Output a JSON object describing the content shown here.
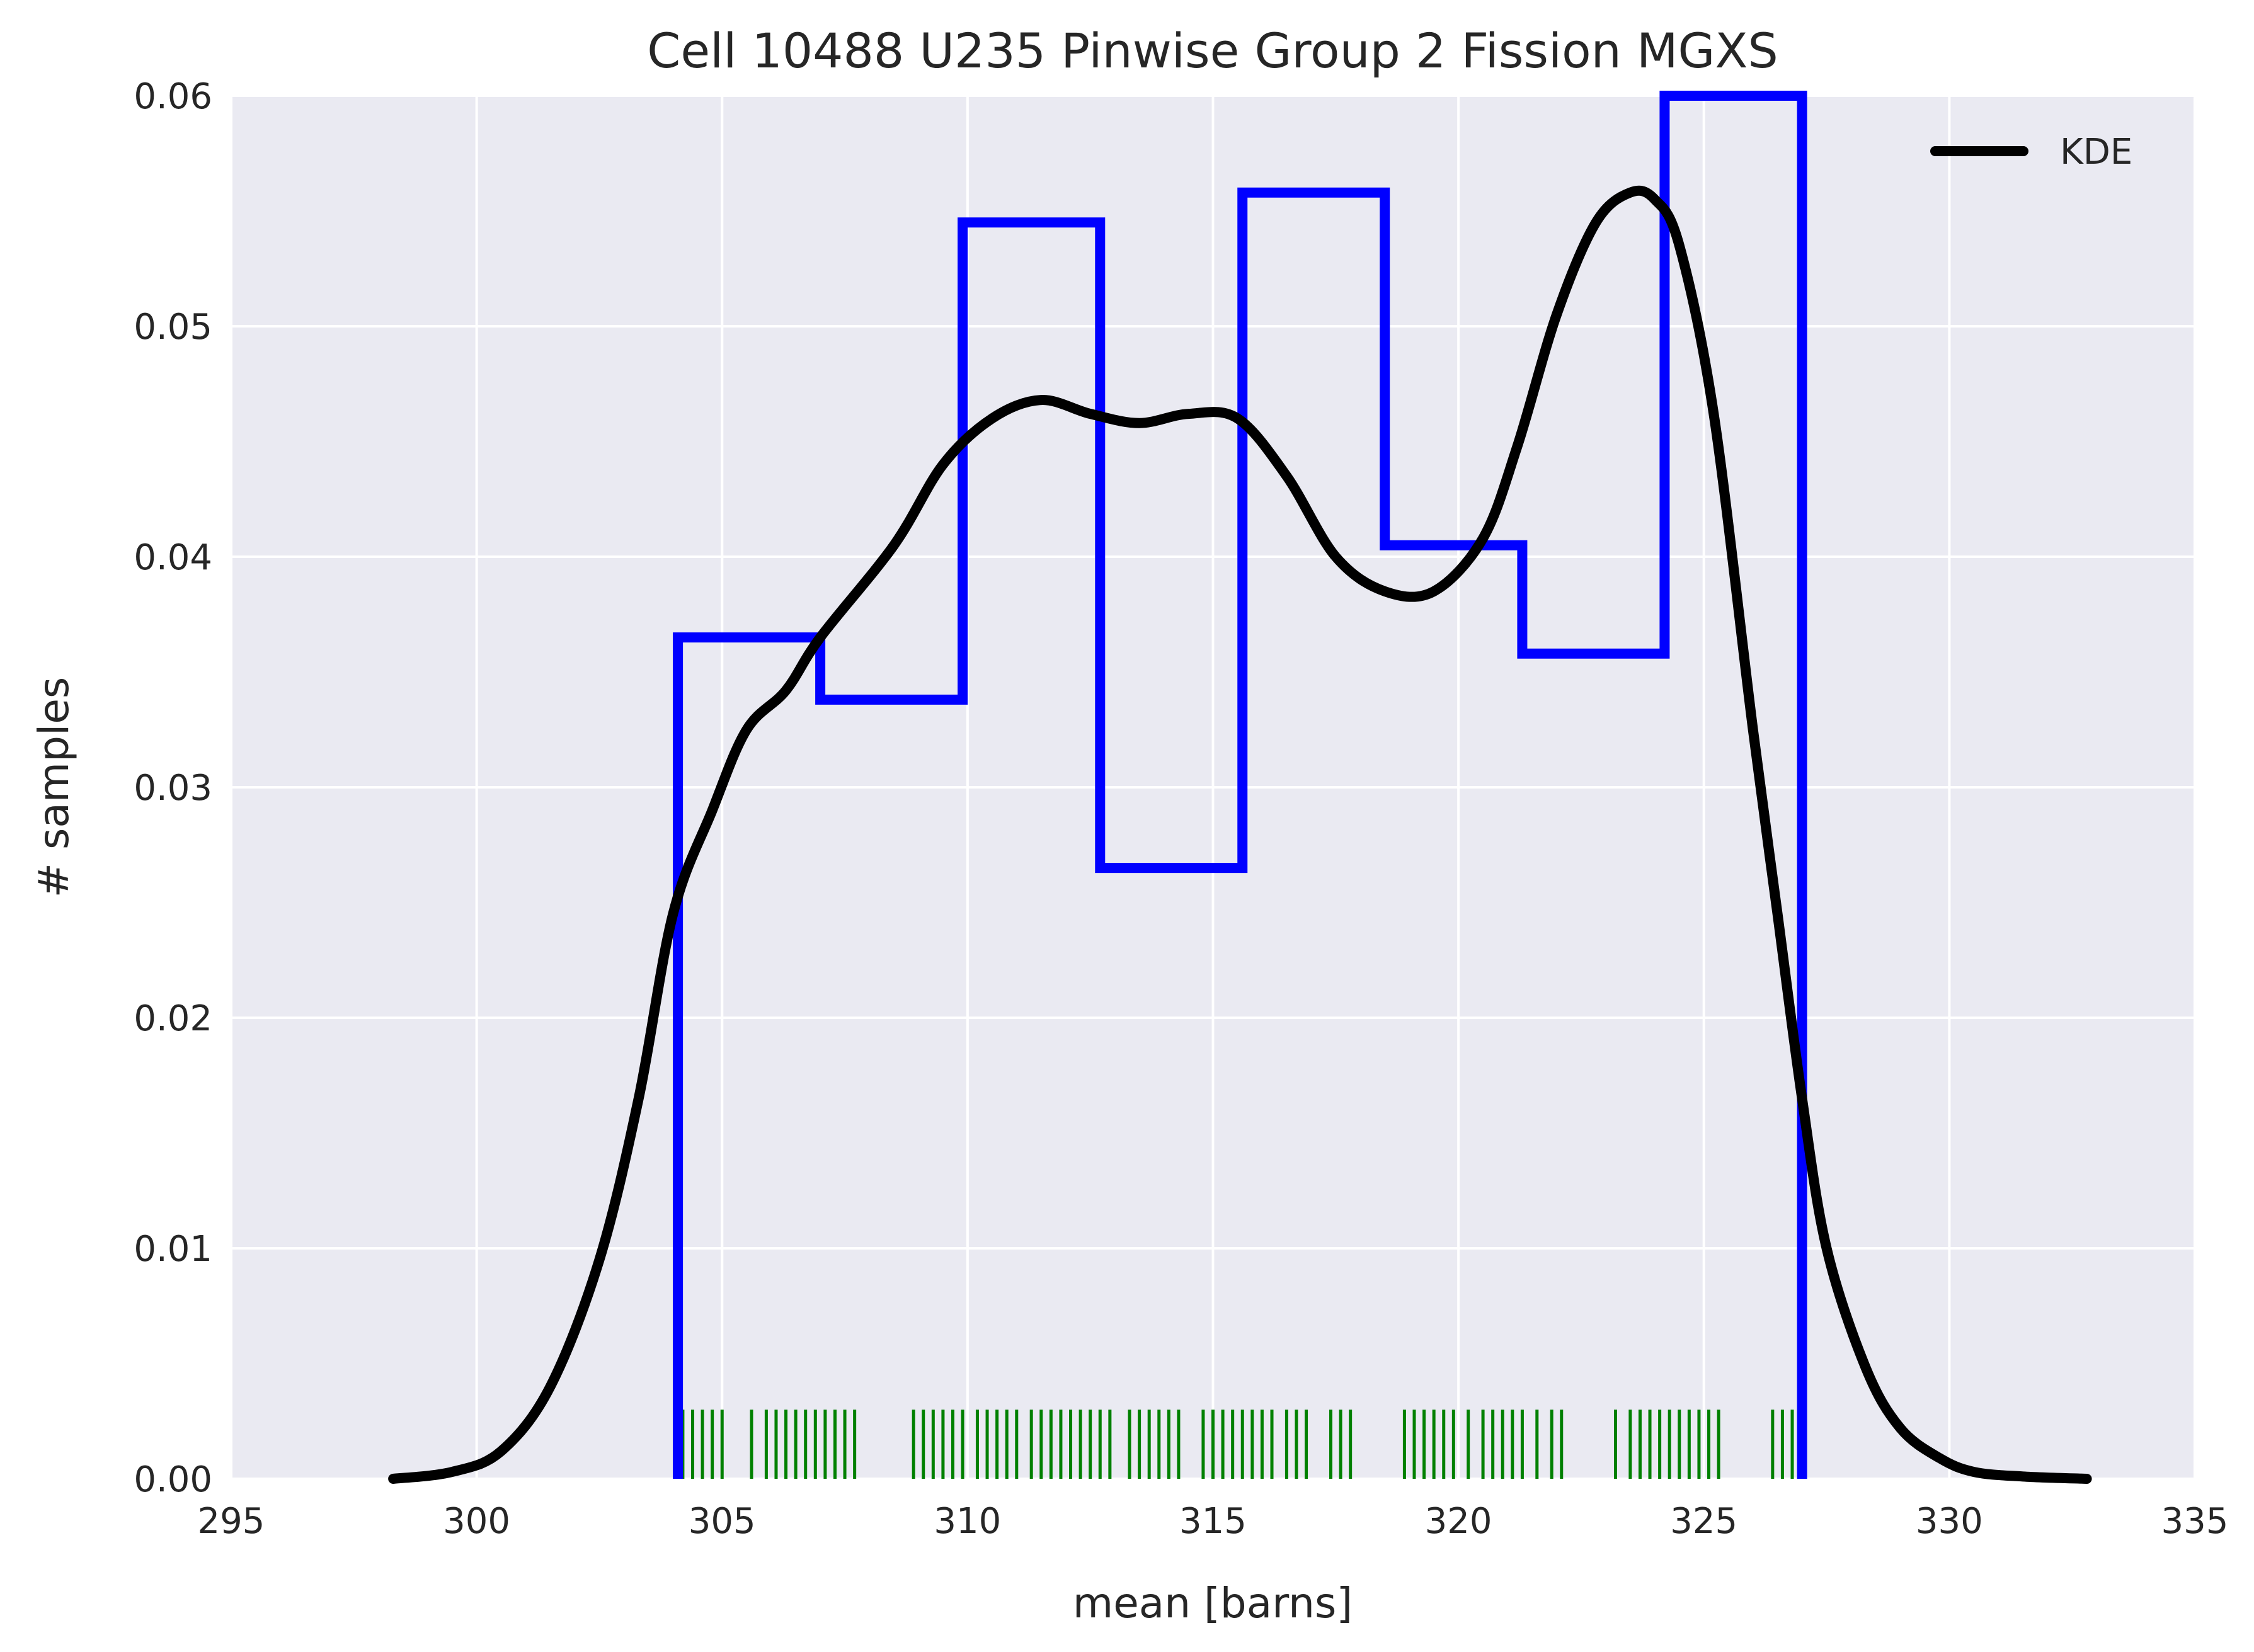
{
  "chart_data": {
    "type": "histogram",
    "title": "Cell 10488 U235 Pinwise Group 2 Fission MGXS",
    "xlabel": "mean [barns]",
    "ylabel": "# samples",
    "xlim": [
      295,
      335
    ],
    "ylim": [
      0,
      0.06
    ],
    "x_ticks": [
      "295",
      "300",
      "305",
      "310",
      "315",
      "320",
      "325",
      "330",
      "335"
    ],
    "y_ticks": [
      "0.00",
      "0.01",
      "0.02",
      "0.03",
      "0.04",
      "0.05",
      "0.06"
    ],
    "grid": true,
    "legend": {
      "position": "top-right",
      "entries": [
        "KDE"
      ]
    },
    "colors": {
      "background": "#eaeaf2",
      "grid": "#ffffff",
      "histogram": "#0000ff",
      "kde": "#000000",
      "rug": "#008000",
      "text": "#262626"
    },
    "histogram": {
      "bin_edges": [
        304.1,
        307.0,
        309.9,
        312.7,
        315.6,
        318.5,
        321.3,
        324.2,
        327.0
      ],
      "density": [
        0.0365,
        0.0338,
        0.0545,
        0.0265,
        0.0558,
        0.0405,
        0.0358,
        0.0654
      ]
    },
    "kde": {
      "name": "KDE",
      "x": [
        298.3,
        299.5,
        300.5,
        301.5,
        302.5,
        303.3,
        304.0,
        304.8,
        305.5,
        306.3,
        307.0,
        308.5,
        309.5,
        310.5,
        311.5,
        312.5,
        313.5,
        314.5,
        315.5,
        316.5,
        317.5,
        318.5,
        319.5,
        320.5,
        321.2,
        322.0,
        322.8,
        323.5,
        324.0,
        324.5,
        325.2,
        326.0,
        326.5,
        327.0,
        327.5,
        328.3,
        329.0,
        329.8,
        330.5,
        331.5,
        332.8
      ],
      "y": [
        0.0,
        0.0003,
        0.0012,
        0.004,
        0.0095,
        0.0165,
        0.0245,
        0.029,
        0.0325,
        0.0342,
        0.0365,
        0.0405,
        0.044,
        0.046,
        0.0468,
        0.0462,
        0.0458,
        0.0462,
        0.046,
        0.0435,
        0.04,
        0.0385,
        0.0385,
        0.0408,
        0.0448,
        0.0505,
        0.0545,
        0.0558,
        0.0555,
        0.0535,
        0.0462,
        0.0325,
        0.0245,
        0.0165,
        0.01,
        0.0048,
        0.0022,
        0.0009,
        0.0003,
        0.0001,
        0.0
      ]
    },
    "rug": {
      "height": 0.003,
      "x": [
        304.2,
        304.4,
        304.6,
        304.8,
        305.0,
        305.6,
        305.9,
        306.1,
        306.3,
        306.5,
        306.7,
        306.9,
        307.1,
        307.3,
        307.5,
        307.7,
        308.9,
        309.1,
        309.3,
        309.5,
        309.7,
        309.9,
        310.2,
        310.4,
        310.6,
        310.8,
        311.0,
        311.3,
        311.5,
        311.7,
        311.9,
        312.1,
        312.3,
        312.5,
        312.7,
        312.9,
        313.3,
        313.5,
        313.7,
        313.9,
        314.1,
        314.3,
        314.8,
        315.0,
        315.2,
        315.4,
        315.6,
        315.8,
        316.0,
        316.2,
        316.5,
        316.7,
        316.9,
        317.4,
        317.6,
        317.8,
        318.9,
        319.1,
        319.3,
        319.5,
        319.7,
        319.9,
        320.2,
        320.5,
        320.7,
        320.9,
        321.1,
        321.3,
        321.6,
        321.9,
        322.1,
        323.2,
        323.5,
        323.7,
        323.9,
        324.1,
        324.3,
        324.5,
        324.7,
        324.9,
        325.1,
        325.3,
        326.4,
        326.6,
        326.8,
        327.0
      ]
    }
  }
}
